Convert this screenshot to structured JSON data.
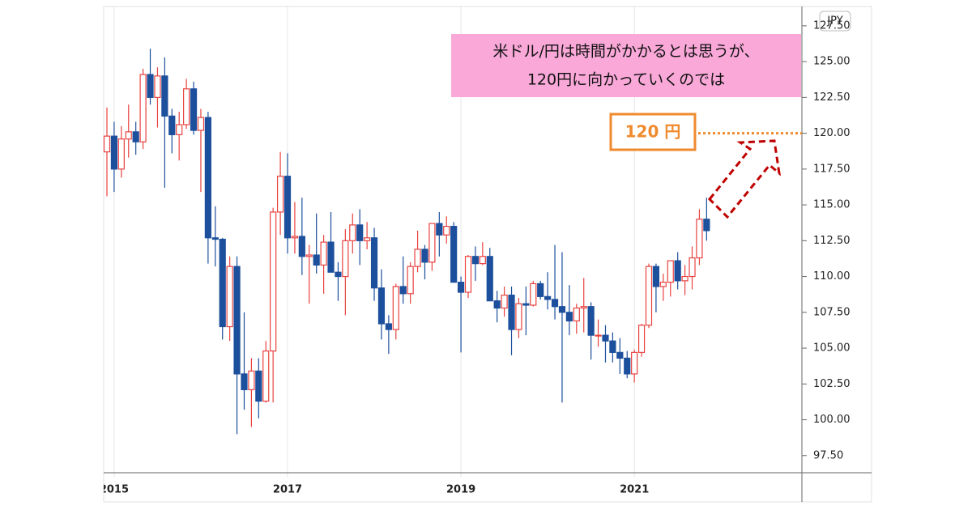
{
  "chart_data": {
    "type": "candlestick",
    "categories": [
      null,
      "2015",
      null,
      null,
      null,
      null,
      null,
      null,
      null,
      null,
      null,
      null,
      null,
      null,
      null,
      null,
      null,
      null,
      null,
      null,
      null,
      null,
      null,
      null,
      null,
      "2017",
      null,
      null,
      null,
      null,
      null,
      null,
      null,
      null,
      null,
      null,
      null,
      null,
      null,
      null,
      null,
      null,
      null,
      null,
      null,
      null,
      null,
      null,
      null,
      "2019",
      null,
      null,
      null,
      null,
      null,
      null,
      null,
      null,
      null,
      null,
      null,
      null,
      null,
      null,
      null,
      null,
      null,
      null,
      null,
      null,
      null,
      null,
      null,
      "2021",
      null,
      null,
      null,
      null,
      null,
      null,
      null,
      null,
      null,
      null
    ],
    "open": [
      118.7,
      119.8,
      117.5,
      119.6,
      120.1,
      119.4,
      124.1,
      122.5,
      124.0,
      121.2,
      119.9,
      120.6,
      123.1,
      120.2,
      121.1,
      112.7,
      112.6,
      106.5,
      110.7,
      103.2,
      102.1,
      103.4,
      101.3,
      104.8,
      114.5,
      117.0,
      112.7,
      112.8,
      111.4,
      111.5,
      110.8,
      112.4,
      110.3,
      110.0,
      112.5,
      113.6,
      112.5,
      112.7,
      109.2,
      106.7,
      106.3,
      109.3,
      108.8,
      110.7,
      111.9,
      111.0,
      113.7,
      112.9,
      113.5,
      109.6,
      108.9,
      111.4,
      110.9,
      111.4,
      108.3,
      107.8,
      108.7,
      106.3,
      108.1,
      108.0,
      109.5,
      108.6,
      108.4,
      107.9,
      107.5,
      106.9,
      107.8,
      107.9,
      105.9,
      105.9,
      105.5,
      104.7,
      104.3,
      103.2,
      104.7,
      106.6,
      110.7,
      109.3,
      109.6,
      111.1,
      109.7,
      110.0,
      111.3,
      114.0
    ],
    "high": [
      121.8,
      120.8,
      120.5,
      122.0,
      120.8,
      124.5,
      125.9,
      124.6,
      125.3,
      121.7,
      121.5,
      123.8,
      123.6,
      121.7,
      121.5,
      114.9,
      112.7,
      111.4,
      111.4,
      107.5,
      104.3,
      104.3,
      105.5,
      114.8,
      118.7,
      118.6,
      115.2,
      115.5,
      112.2,
      114.4,
      112.9,
      114.5,
      111.0,
      113.3,
      114.4,
      114.7,
      113.8,
      113.4,
      110.5,
      107.3,
      109.5,
      111.4,
      111.0,
      113.2,
      112.2,
      113.7,
      114.5,
      114.2,
      113.8,
      110.0,
      111.5,
      112.1,
      112.4,
      112.0,
      109.0,
      109.3,
      109.3,
      108.5,
      109.3,
      109.7,
      109.7,
      110.3,
      112.2,
      111.7,
      109.4,
      108.1,
      109.9,
      108.2,
      107.0,
      106.6,
      106.1,
      105.7,
      104.8,
      104.9,
      106.7,
      110.9,
      110.9,
      110.2,
      111.1,
      111.7,
      110.8,
      112.1,
      114.7,
      115.5
    ],
    "low": [
      115.6,
      115.9,
      116.9,
      118.3,
      118.5,
      118.9,
      122.0,
      120.4,
      116.2,
      118.6,
      118.1,
      120.3,
      119.9,
      115.9,
      110.9,
      110.7,
      105.6,
      105.5,
      99.0,
      100.7,
      99.5,
      100.1,
      101.2,
      101.2,
      112.9,
      111.6,
      111.6,
      110.1,
      108.1,
      110.2,
      108.8,
      110.6,
      108.3,
      107.3,
      111.6,
      110.8,
      111.9,
      108.3,
      105.6,
      104.6,
      105.6,
      108.1,
      108.1,
      110.3,
      109.8,
      110.4,
      111.4,
      112.3,
      109.6,
      104.7,
      108.5,
      109.7,
      110.8,
      108.3,
      106.8,
      107.2,
      104.5,
      105.7,
      105.9,
      107.9,
      108.4,
      107.7,
      107.0,
      101.2,
      105.9,
      106.0,
      106.1,
      104.2,
      105.1,
      104.0,
      104.0,
      103.2,
      102.9,
      102.6,
      104.4,
      106.4,
      107.5,
      108.3,
      108.6,
      109.1,
      108.7,
      109.1,
      110.8,
      112.5
    ],
    "close": [
      119.8,
      117.5,
      119.6,
      120.1,
      119.4,
      124.1,
      122.5,
      124.0,
      121.2,
      119.9,
      120.6,
      123.1,
      120.2,
      121.1,
      112.7,
      112.6,
      106.5,
      110.7,
      103.2,
      102.1,
      103.4,
      101.3,
      104.8,
      114.5,
      117.0,
      112.7,
      112.8,
      111.4,
      111.5,
      110.8,
      112.4,
      110.3,
      110.0,
      112.5,
      113.6,
      112.5,
      112.7,
      109.2,
      106.7,
      106.3,
      109.3,
      108.8,
      110.7,
      111.9,
      111.0,
      113.7,
      112.9,
      113.5,
      109.6,
      108.9,
      111.4,
      110.9,
      111.4,
      108.3,
      107.8,
      108.7,
      106.3,
      108.1,
      108.0,
      109.5,
      108.6,
      108.4,
      107.9,
      107.5,
      106.9,
      107.8,
      107.9,
      105.9,
      105.9,
      105.5,
      104.7,
      104.3,
      103.2,
      104.7,
      106.6,
      110.7,
      109.3,
      109.6,
      111.1,
      109.7,
      110.0,
      111.3,
      114.0,
      113.2
    ],
    "up_color": "#e8423f",
    "down_color": "#1c4f9c",
    "ylim": [
      96.3,
      128.85
    ],
    "yticks": [
      {
        "value": 97.5,
        "label": "97.50"
      },
      {
        "value": 100,
        "label": "100.00"
      },
      {
        "value": 102.5,
        "label": "102.50"
      },
      {
        "value": 105,
        "label": "105.00"
      },
      {
        "value": 107.5,
        "label": "107.50"
      },
      {
        "value": 110,
        "label": "110.00"
      },
      {
        "value": 112.5,
        "label": "112.50"
      },
      {
        "value": 115,
        "label": "115.00"
      },
      {
        "value": 117.5,
        "label": "117.50"
      },
      {
        "value": 120,
        "label": "120.00"
      },
      {
        "value": 122.5,
        "label": "122.50"
      },
      {
        "value": 125,
        "label": "125.00"
      },
      {
        "value": 127.5,
        "label": "127.50"
      }
    ],
    "currency": "JPY",
    "target_line": 120,
    "annotations": {
      "comment": [
        "米ドル/円は時間がかかるとは思うが、",
        "120円に向かっていくのでは"
      ],
      "target_label": "120 円"
    }
  }
}
